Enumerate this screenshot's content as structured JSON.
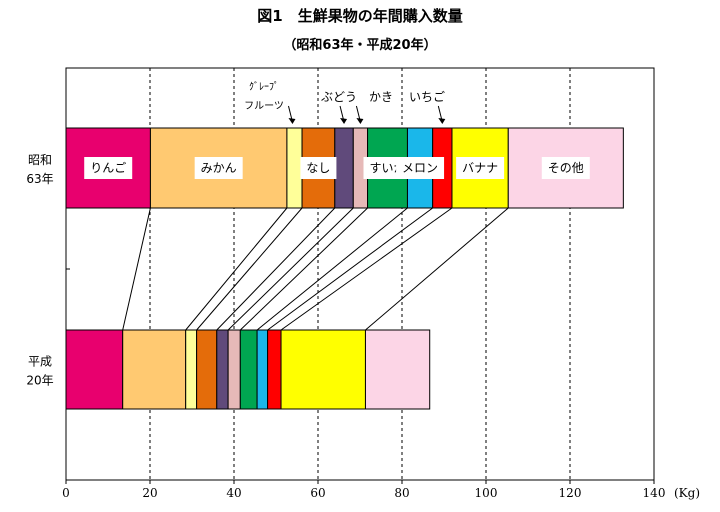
{
  "chart_data": {
    "type": "bar",
    "orientation": "horizontal",
    "stacked": true,
    "title": "図1　生鮮果物の年間購入数量",
    "subtitle": "（昭和63年・平成20年）",
    "xlabel": "",
    "ylabel": "",
    "unit": "(Kg)",
    "xlim": [
      0,
      140
    ],
    "xticks": [
      0,
      20,
      40,
      60,
      80,
      100,
      120,
      140
    ],
    "grid": true,
    "categories": [
      "昭和\n63年",
      "平成\n20年"
    ],
    "category_lines": [
      [
        "昭和",
        "63年"
      ],
      [
        "平成",
        "20年"
      ]
    ],
    "series": [
      {
        "name": "りんご",
        "color": "#e8006e",
        "values": [
          20.1,
          13.5
        ],
        "label_inside": true
      },
      {
        "name": "みかん",
        "color": "#ffc971",
        "values": [
          32.5,
          15.0
        ],
        "label_inside": true
      },
      {
        "name": "グレープフルーツ",
        "name_lines": [
          "ｸﾞﾚｰﾌﾟ",
          "フルーツ"
        ],
        "color": "#ffff99",
        "values": [
          3.6,
          2.6
        ],
        "label_inside": false
      },
      {
        "name": "なし",
        "color": "#e46c0a",
        "values": [
          7.8,
          4.8
        ],
        "label_inside": true
      },
      {
        "name": "ぶどう",
        "color": "#604a7b",
        "values": [
          4.4,
          2.7
        ],
        "label_inside": false
      },
      {
        "name": "かき",
        "color": "#e6b9b8",
        "values": [
          3.4,
          2.9
        ],
        "label_inside": false
      },
      {
        "name": "すいか",
        "color": "#00a651",
        "values": [
          9.5,
          4.0
        ],
        "label_inside": true
      },
      {
        "name": "メロン",
        "color": "#1ab7ea",
        "values": [
          6.0,
          2.5
        ],
        "label_inside": true
      },
      {
        "name": "いちご",
        "color": "#ff0000",
        "values": [
          4.6,
          3.2
        ],
        "label_inside": false
      },
      {
        "name": "バナナ",
        "color": "#ffff00",
        "values": [
          13.4,
          20.1
        ],
        "label_inside": true
      },
      {
        "name": "その他",
        "color": "#fcd5e6",
        "values": [
          27.4,
          15.3
        ],
        "label_inside": true
      }
    ]
  }
}
